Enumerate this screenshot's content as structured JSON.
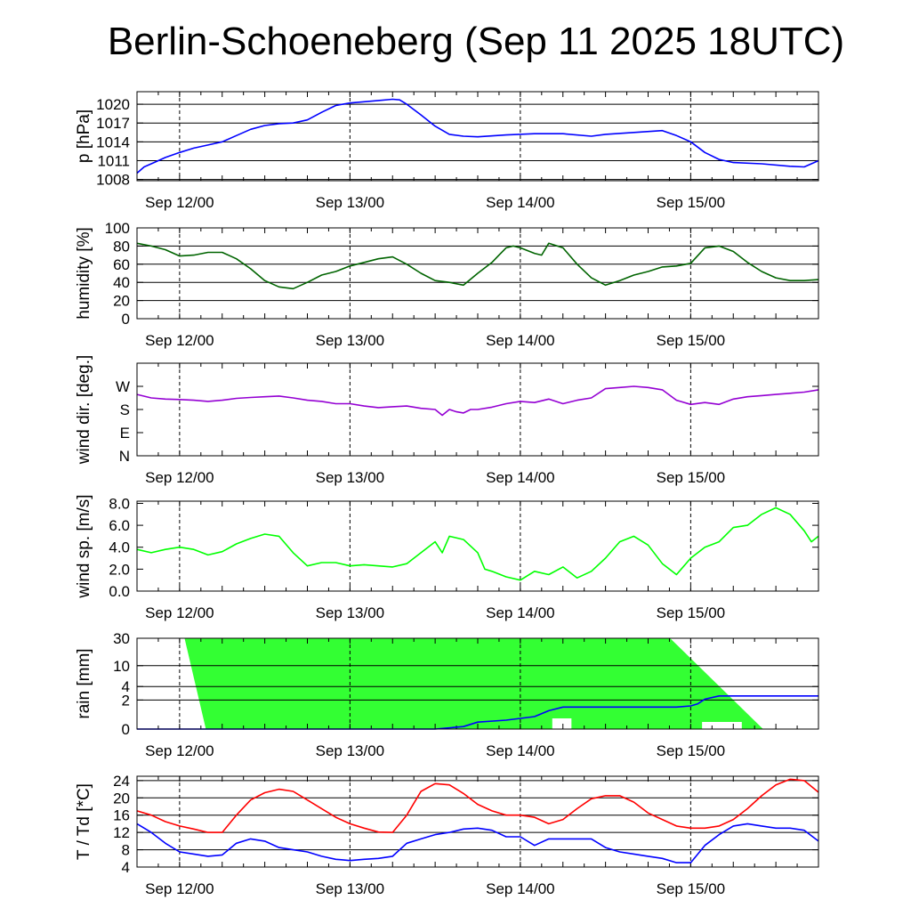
{
  "title": "Berlin-Schoeneberg (Sep 11 2025 18UTC)",
  "colors": {
    "pressure": "#0000ff",
    "humidity": "#006400",
    "wind_dir": "#9400d3",
    "wind_speed": "#00ff00",
    "rain_area": "#33ff33",
    "rain_line": "#0000ff",
    "temperature": "#ff0000",
    "dewpoint": "#0000ff"
  },
  "chart_data": [
    {
      "type": "line",
      "ylabel": "p [hPa]",
      "ylim": [
        1007.8,
        1022
      ],
      "yticks": [
        1008,
        1011,
        1014,
        1017,
        1020
      ],
      "ytick_labels": [
        "1008",
        "1011",
        "1014",
        "1017",
        "1020"
      ],
      "xlim": [
        0,
        96
      ],
      "xticks": [
        6,
        30,
        54,
        78
      ],
      "xtick_labels": [
        "Sep 12/00",
        "Sep 13/00",
        "Sep 14/00",
        "Sep 15/00"
      ],
      "grid": "horizontal",
      "series": [
        {
          "x": [
            0,
            1,
            2,
            3,
            4,
            6,
            8,
            10,
            12,
            14,
            16,
            18,
            20,
            22,
            24,
            26,
            28,
            30,
            32,
            34,
            36,
            37,
            38,
            40,
            42,
            44,
            46,
            48,
            52,
            56,
            60,
            64,
            66,
            70,
            74,
            76,
            78,
            80,
            82,
            84,
            88,
            92,
            94,
            96
          ],
          "y": [
            1009,
            1010,
            1010.5,
            1011,
            1011.5,
            1012.3,
            1013,
            1013.5,
            1014,
            1015,
            1016,
            1016.6,
            1016.9,
            1017,
            1017.5,
            1018.7,
            1019.8,
            1020.2,
            1020.4,
            1020.6,
            1020.8,
            1020.7,
            1020,
            1018.3,
            1016.5,
            1015.2,
            1014.9,
            1014.8,
            1015.1,
            1015.3,
            1015.3,
            1014.9,
            1015.2,
            1015.5,
            1015.8,
            1015,
            1014,
            1012.3,
            1011.2,
            1010.7,
            1010.5,
            1010.1,
            1010,
            1011
          ]
        }
      ]
    },
    {
      "type": "line",
      "ylabel": "humidity [%]",
      "ylim": [
        0,
        100
      ],
      "yticks": [
        0,
        20,
        40,
        60,
        80,
        100
      ],
      "ytick_labels": [
        "0",
        "20",
        "40",
        "60",
        "80",
        "100"
      ],
      "xlim": [
        0,
        96
      ],
      "xticks": [
        6,
        30,
        54,
        78
      ],
      "xtick_labels": [
        "Sep 12/00",
        "Sep 13/00",
        "Sep 14/00",
        "Sep 15/00"
      ],
      "grid": "horizontal",
      "series": [
        {
          "x": [
            0,
            2,
            4,
            6,
            8,
            10,
            12,
            14,
            16,
            18,
            20,
            22,
            24,
            26,
            28,
            30,
            32,
            34,
            36,
            38,
            40,
            42,
            44,
            46,
            48,
            50,
            51,
            52,
            53,
            54,
            55,
            56,
            57,
            58,
            60,
            62,
            64,
            66,
            68,
            70,
            72,
            74,
            76,
            78,
            80,
            82,
            84,
            86,
            88,
            90,
            92,
            94,
            96
          ],
          "y": [
            83,
            80,
            76,
            69,
            70,
            73,
            73,
            66,
            55,
            42,
            35,
            33,
            40,
            48,
            52,
            58,
            62,
            66,
            68,
            60,
            50,
            42,
            40,
            37,
            50,
            62,
            70,
            78,
            80,
            78,
            75,
            72,
            70,
            83,
            78,
            60,
            45,
            37,
            42,
            48,
            52,
            57,
            58,
            61,
            78,
            80,
            74,
            62,
            52,
            45,
            42,
            42,
            43
          ]
        }
      ]
    },
    {
      "type": "line",
      "ylabel": "wind dir. [deg.]",
      "ylim": [
        0,
        400
      ],
      "yticks": [
        0,
        100,
        200,
        300
      ],
      "ytick_labels": [
        "N",
        "E",
        "S",
        "W"
      ],
      "xlim": [
        0,
        96
      ],
      "xticks": [
        6,
        30,
        54,
        78
      ],
      "xtick_labels": [
        "Sep 12/00",
        "Sep 13/00",
        "Sep 14/00",
        "Sep 15/00"
      ],
      "grid": "none",
      "series": [
        {
          "x": [
            0,
            2,
            4,
            6,
            8,
            10,
            12,
            14,
            16,
            18,
            20,
            22,
            24,
            26,
            28,
            30,
            32,
            34,
            36,
            38,
            40,
            42,
            43,
            44,
            45,
            46,
            47,
            48,
            50,
            52,
            54,
            56,
            58,
            60,
            62,
            64,
            66,
            68,
            70,
            72,
            74,
            76,
            78,
            80,
            82,
            84,
            86,
            88,
            90,
            92,
            94,
            96
          ],
          "y": [
            265,
            250,
            245,
            243,
            240,
            235,
            240,
            248,
            252,
            255,
            258,
            250,
            240,
            235,
            225,
            225,
            215,
            208,
            212,
            215,
            205,
            200,
            175,
            200,
            190,
            185,
            200,
            200,
            210,
            225,
            235,
            230,
            245,
            225,
            240,
            250,
            290,
            295,
            300,
            295,
            285,
            240,
            222,
            230,
            222,
            245,
            255,
            260,
            265,
            270,
            275,
            285
          ]
        }
      ]
    },
    {
      "type": "line",
      "ylabel": "wind sp. [m/s]",
      "ylim": [
        0,
        8.2
      ],
      "yticks": [
        0,
        2,
        4,
        6,
        8
      ],
      "ytick_labels": [
        "0.0",
        "2.0",
        "4.0",
        "6.0",
        "8.0"
      ],
      "xlim": [
        0,
        96
      ],
      "xticks": [
        6,
        30,
        54,
        78
      ],
      "xtick_labels": [
        "Sep 12/00",
        "Sep 13/00",
        "Sep 14/00",
        "Sep 15/00"
      ],
      "grid": "none",
      "series": [
        {
          "x": [
            0,
            2,
            4,
            6,
            8,
            10,
            12,
            14,
            16,
            18,
            20,
            22,
            24,
            26,
            28,
            30,
            32,
            34,
            36,
            38,
            40,
            42,
            43,
            44,
            46,
            48,
            49,
            50,
            52,
            54,
            56,
            58,
            60,
            62,
            64,
            66,
            68,
            70,
            72,
            74,
            76,
            78,
            80,
            82,
            84,
            86,
            88,
            90,
            92,
            94,
            95,
            96
          ],
          "y": [
            3.8,
            3.5,
            3.8,
            4.0,
            3.8,
            3.3,
            3.6,
            4.3,
            4.8,
            5.2,
            5.0,
            3.5,
            2.3,
            2.6,
            2.6,
            2.3,
            2.4,
            2.3,
            2.2,
            2.5,
            3.5,
            4.5,
            3.5,
            5.0,
            4.7,
            3.5,
            2.0,
            1.8,
            1.3,
            1.0,
            1.8,
            1.5,
            2.2,
            1.2,
            1.8,
            3.0,
            4.5,
            5.0,
            4.2,
            2.5,
            1.5,
            3.0,
            4.0,
            4.5,
            5.8,
            6.0,
            7.0,
            7.6,
            7.0,
            5.5,
            4.5,
            5.0
          ]
        }
      ]
    },
    {
      "type": "area",
      "ylabel": "rain [mm]",
      "ylim": [
        0,
        30
      ],
      "yticks": [
        0,
        2,
        4,
        10,
        30
      ],
      "ytick_labels": [
        "0",
        "2",
        "4",
        "10",
        "30"
      ],
      "xlim": [
        0,
        96
      ],
      "xticks": [
        6,
        30,
        54,
        78
      ],
      "xtick_labels": [
        "Sep 12/00",
        "Sep 13/00",
        "Sep 14/00",
        "Sep 15/00"
      ],
      "grid": "horizontal",
      "series": [
        {
          "x": [
            0,
            38,
            42,
            46,
            48,
            52,
            54,
            56,
            58,
            60,
            62,
            64,
            66,
            68,
            70,
            72,
            74,
            76,
            78,
            79,
            80,
            82,
            84,
            86,
            88,
            90,
            92,
            94,
            96
          ],
          "y": [
            0,
            0,
            0,
            0.1,
            0.3,
            0.4,
            0.5,
            0.6,
            1.0,
            1.3,
            1.3,
            1.3,
            1.3,
            1.3,
            1.3,
            1.3,
            1.3,
            1.3,
            1.4,
            1.6,
            2.1,
            2.5,
            2.5,
            2.5,
            2.5,
            2.5,
            2.5,
            2.5,
            2.5
          ]
        }
      ]
    },
    {
      "type": "line",
      "ylabel": "T / Td [*C]",
      "ylim": [
        4,
        25
      ],
      "yticks": [
        4,
        8,
        12,
        16,
        20,
        24
      ],
      "ytick_labels": [
        "4",
        "8",
        "12",
        "16",
        "20",
        "24"
      ],
      "xlim": [
        0,
        96
      ],
      "xticks": [
        6,
        30,
        54,
        78
      ],
      "xtick_labels": [
        "Sep 12/00",
        "Sep 13/00",
        "Sep 14/00",
        "Sep 15/00"
      ],
      "grid": "horizontal",
      "series": [
        {
          "x": [
            0,
            2,
            4,
            6,
            8,
            10,
            12,
            14,
            16,
            18,
            20,
            22,
            24,
            26,
            28,
            30,
            32,
            34,
            36,
            38,
            40,
            42,
            44,
            46,
            48,
            50,
            52,
            54,
            56,
            58,
            60,
            62,
            64,
            66,
            68,
            70,
            72,
            74,
            76,
            78,
            80,
            82,
            84,
            86,
            88,
            90,
            92,
            94,
            96
          ],
          "y": [
            17,
            16,
            14.5,
            13.5,
            12.8,
            12,
            12,
            16,
            19.5,
            21.2,
            22,
            21.5,
            19.5,
            17.5,
            15.5,
            14,
            13,
            12.1,
            12,
            16,
            21.5,
            23.3,
            23,
            21,
            18.5,
            17,
            16,
            16,
            15.5,
            14,
            15,
            17.5,
            19.8,
            20.5,
            20.5,
            19,
            16.5,
            15,
            13.5,
            13,
            13,
            13.5,
            15,
            17.5,
            20.5,
            23,
            24.3,
            24,
            21.3
          ]
        },
        {
          "x": [
            0,
            2,
            4,
            6,
            8,
            10,
            12,
            14,
            16,
            18,
            20,
            22,
            24,
            26,
            28,
            30,
            32,
            34,
            36,
            38,
            40,
            42,
            44,
            46,
            48,
            50,
            52,
            54,
            56,
            58,
            60,
            62,
            64,
            66,
            68,
            70,
            72,
            74,
            76,
            78,
            80,
            82,
            84,
            86,
            88,
            90,
            92,
            94,
            96
          ],
          "y": [
            14,
            12,
            9.5,
            7.5,
            7,
            6.5,
            6.8,
            9.5,
            10.5,
            10,
            8.5,
            8,
            7.5,
            6.5,
            5.8,
            5.5,
            5.8,
            6.0,
            6.5,
            9.5,
            10.5,
            11.5,
            12,
            12.8,
            13,
            12.5,
            11,
            11,
            9,
            10.5,
            10.5,
            10.5,
            10.5,
            8.5,
            7.5,
            7,
            6.5,
            6,
            5,
            5,
            9,
            11.5,
            13.5,
            14,
            13.5,
            13,
            13,
            12.5,
            10
          ]
        }
      ]
    }
  ]
}
